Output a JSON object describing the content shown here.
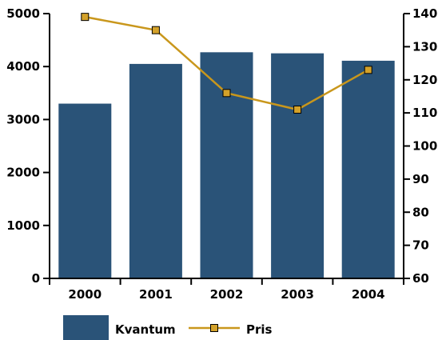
{
  "chart_data": {
    "type": "bar",
    "categories": [
      "2000",
      "2001",
      "2002",
      "2003",
      "2004"
    ],
    "series": [
      {
        "name": "Kvantum",
        "type": "bar",
        "axis": "left",
        "color": "#2a5378",
        "values": [
          3300,
          4050,
          4270,
          4250,
          4110
        ]
      },
      {
        "name": "Pris",
        "type": "line",
        "axis": "right",
        "color": "#c9971c",
        "marker_color": "#d4a22a",
        "values": [
          139,
          135,
          116,
          111,
          123
        ]
      }
    ],
    "y_left": {
      "range": [
        0,
        5000
      ],
      "ticks": [
        "0",
        "1000",
        "2000",
        "3000",
        "4000",
        "5000"
      ]
    },
    "y_right": {
      "range": [
        60,
        140
      ],
      "ticks": [
        "60",
        "70",
        "80",
        "90",
        "100",
        "110",
        "120",
        "130",
        "140"
      ]
    },
    "grid": false,
    "legend": {
      "placement": "bottom-left",
      "items": [
        "Kvantum",
        "Pris"
      ]
    }
  }
}
